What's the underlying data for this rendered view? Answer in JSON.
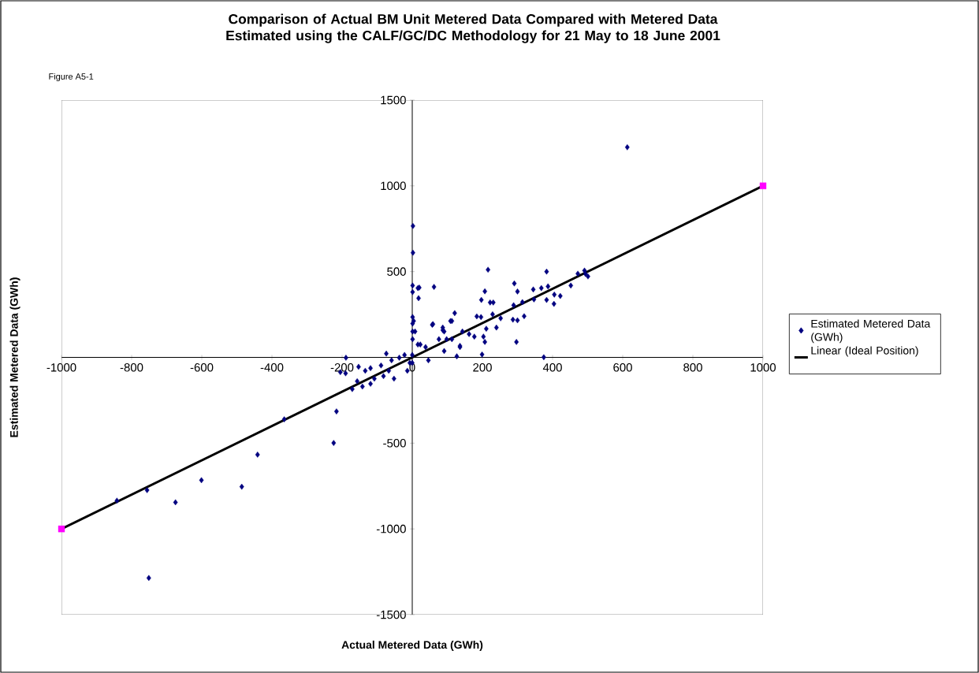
{
  "chart_data": {
    "type": "scatter",
    "title": "Comparison of Actual BM Unit Metered Data Compared with Metered Data Estimated using the CALF/GC/DC Methodology for 21 May to 18 June 2001",
    "xlabel": "Actual Metered Data (GWh)",
    "ylabel": "Estimated Metered Data (GWh)",
    "annotations": [
      "Figure A5-1"
    ],
    "xlim": [
      -1000,
      1000
    ],
    "ylim": [
      -1500,
      1500
    ],
    "xticks": [
      -1000,
      -800,
      -600,
      -400,
      -200,
      0,
      200,
      400,
      600,
      800,
      1000
    ],
    "yticks": [
      -1500,
      -1000,
      -500,
      500,
      1000,
      1500
    ],
    "grid": false,
    "legend": "right",
    "series": [
      {
        "name": "Estimated Metered Data (GWh)",
        "marker": "diamond",
        "color": "#000080",
        "x": [
          -842,
          -756,
          -675,
          -601,
          -486,
          -441,
          -365,
          -224,
          -216,
          -751,
          613,
          216,
          383,
          472,
          494,
          491,
          501,
          452,
          62,
          20,
          1,
          18,
          207,
          291,
          300,
          345,
          368,
          387,
          405,
          422,
          404,
          383,
          347,
          314,
          289,
          319,
          300,
          287,
          297,
          375,
          197,
          222,
          231,
          184,
          196,
          229,
          252,
          240,
          211,
          203,
          207,
          199,
          127,
          136,
          121,
          109,
          59,
          87,
          91,
          143,
          162,
          177,
          113,
          76,
          46,
          38,
          4,
          8,
          23,
          0,
          0,
          91,
          16,
          1,
          1,
          1,
          1,
          1,
          16,
          57,
          87,
          113,
          98,
          136,
          2,
          2,
          -189,
          -205,
          -190,
          -153,
          -134,
          -119,
          -89,
          -74,
          -59,
          -37,
          -22,
          -157,
          -142,
          -108,
          -82,
          -52,
          -14,
          -7,
          -171,
          -119,
          -67
        ],
        "values": [
          -835,
          -774,
          -845,
          -716,
          -754,
          -567,
          -361,
          -499,
          -315,
          -1286,
          1225,
          511,
          500,
          488,
          486,
          506,
          472,
          419,
          411,
          407,
          419,
          345,
          385,
          431,
          384,
          396,
          404,
          414,
          366,
          358,
          312,
          335,
          338,
          322,
          304,
          240,
          216,
          220,
          90,
          1,
          335,
          320,
          320,
          239,
          235,
          251,
          228,
          174,
          167,
          121,
          90,
          17,
          6,
          67,
          258,
          212,
          194,
          174,
          151,
          151,
          136,
          121,
          106,
          106,
          -17,
          60,
          212,
          151,
          75,
          14,
          -32,
          37,
          404,
          381,
          235,
          197,
          151,
          106,
          75,
          190,
          159,
          212,
          106,
          60,
          766,
          610,
          -2,
          -86,
          -93,
          -55,
          -78,
          -63,
          -47,
          22,
          -17,
          -2,
          14,
          -139,
          -170,
          -124,
          -109,
          -124,
          -78,
          -32,
          -185,
          -154,
          -78
        ]
      },
      {
        "marker": "square",
        "color": "#ff00ff",
        "x": [
          -1000,
          1000
        ],
        "values": [
          -1000,
          1000
        ]
      },
      {
        "name": "Linear (Ideal Position)",
        "type": "line",
        "line_style": "solid",
        "color": "#000000",
        "x": [
          -1000,
          1000
        ],
        "values": [
          -1000,
          1000
        ]
      }
    ]
  }
}
